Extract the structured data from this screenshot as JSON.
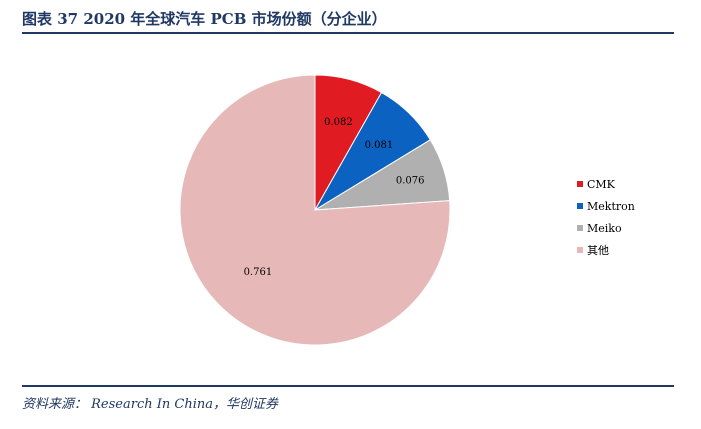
{
  "header": {
    "title": "图表 37   2020 年全球汽车 PCB 市场份额（分企业）"
  },
  "footer": {
    "source": "资料来源： Research In China，华创证券"
  },
  "chart_data": {
    "type": "pie",
    "title": "",
    "slices": [
      {
        "name": "CMK",
        "value": 0.082,
        "label": "0.082",
        "color": "#e01b22"
      },
      {
        "name": "Mektron",
        "value": 0.081,
        "label": "0.081",
        "color": "#0b62c1"
      },
      {
        "name": "Meiko",
        "value": 0.076,
        "label": "0.076",
        "color": "#b0b0b0"
      },
      {
        "name": "其他",
        "value": 0.761,
        "label": "0.761",
        "color": "#e6b8b7"
      }
    ],
    "legend_position": "right"
  }
}
